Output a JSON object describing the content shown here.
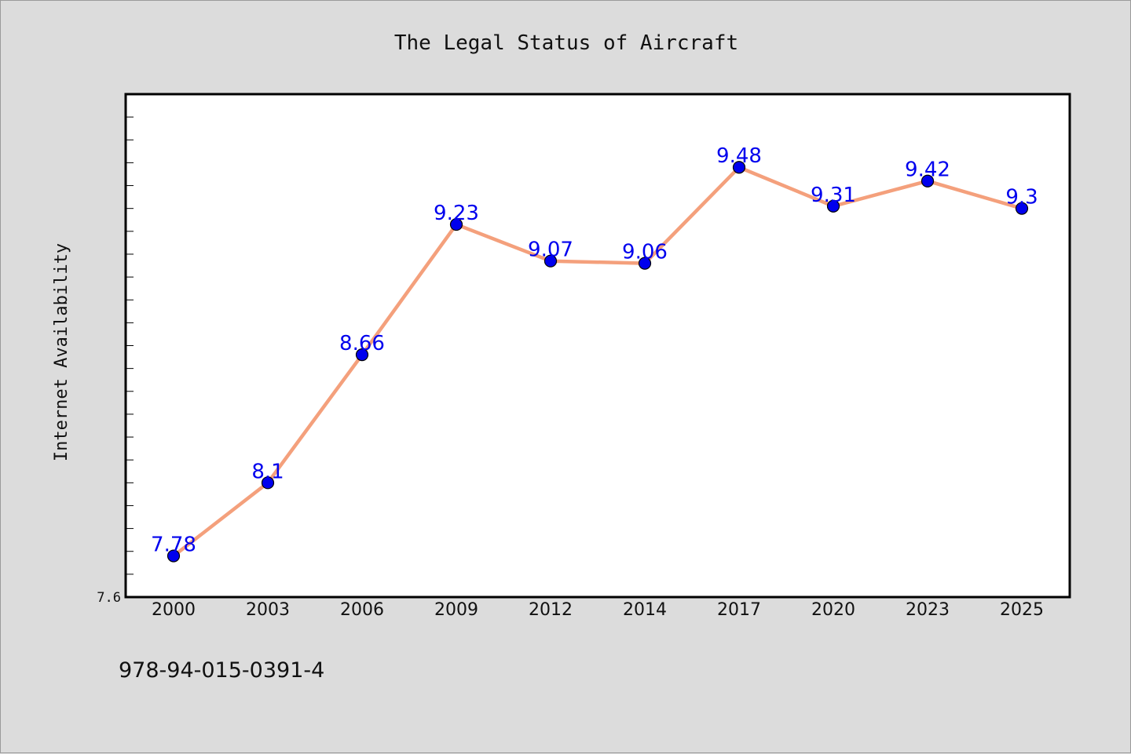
{
  "footer_code": "978-94-015-0391-4",
  "colors": {
    "background": "#dcdcdc",
    "plot_background": "#ffffff",
    "line": "#f4a07c",
    "marker": "#0000ee",
    "data_label": "#0000ee"
  },
  "chart_data": {
    "type": "line",
    "title": "The Legal Status of Aircraft",
    "xlabel": "",
    "ylabel": "Internet Availability",
    "categories": [
      "2000",
      "2003",
      "2006",
      "2009",
      "2012",
      "2014",
      "2017",
      "2020",
      "2023",
      "2025"
    ],
    "series": [
      {
        "values": [
          7.78,
          8.1,
          8.66,
          9.23,
          9.07,
          9.06,
          9.48,
          9.31,
          9.42,
          9.3
        ],
        "data_labels": [
          "7.78",
          "8.1",
          "8.66",
          "9.23",
          "9.07",
          "9.06",
          "9.48",
          "9.31",
          "9.42",
          "9.3"
        ]
      }
    ],
    "ylim": [
      7.6,
      9.8
    ],
    "yticks_labeled": [
      "7.6"
    ],
    "y_minor_step": 0.1,
    "grid": false,
    "legend": "none"
  }
}
